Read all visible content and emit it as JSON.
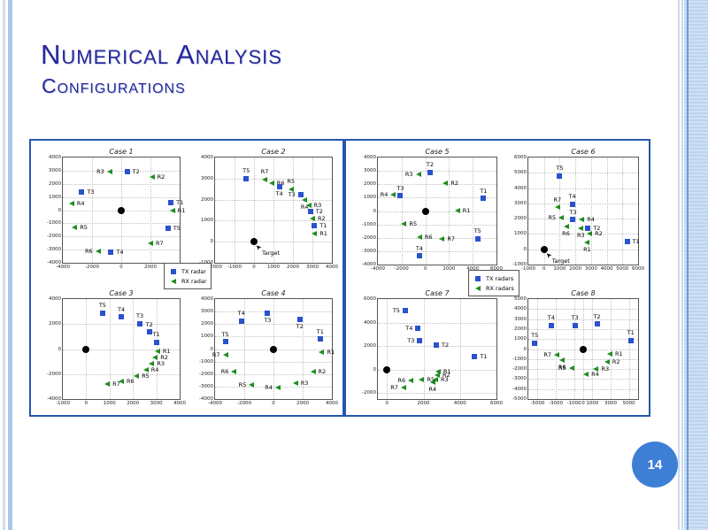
{
  "slide": {
    "title": "Numerical Analysis",
    "subtitle": "Configurations",
    "page_number": "14"
  },
  "colors": {
    "title": "#26269c",
    "tx_marker": "#2952cc",
    "rx_marker": "#1e8c1e",
    "target_marker": "#000000",
    "panel_border": "#2458b0",
    "page_circle": "#3e7fd6"
  },
  "legends": {
    "left": {
      "tx": "TX radar",
      "rx": "RX radar"
    },
    "right": {
      "tx": "TX radars",
      "rx": "RX radars"
    }
  },
  "chart_data": [
    {
      "title": "Case 1",
      "type": "scatter",
      "xlim": [
        -4000,
        4000
      ],
      "ylim": [
        -4000,
        4000
      ],
      "xticks": [
        -4000,
        -2000,
        0,
        2000,
        4000
      ],
      "yticks": [
        -4000,
        -3000,
        -2000,
        -1000,
        0,
        1000,
        2000,
        3000,
        4000
      ],
      "points": [
        {
          "l": "T2",
          "t": "tx",
          "x": 400,
          "y": 2950,
          "p": "r"
        },
        {
          "l": "R3",
          "t": "rx",
          "x": -800,
          "y": 2950,
          "p": "l"
        },
        {
          "l": "R2",
          "t": "rx",
          "x": 2100,
          "y": 2500,
          "p": "r"
        },
        {
          "l": "T3",
          "t": "tx",
          "x": -2700,
          "y": 1350,
          "p": "r"
        },
        {
          "l": "R4",
          "t": "rx",
          "x": -3400,
          "y": 500,
          "p": "r"
        },
        {
          "l": "T1",
          "t": "tx",
          "x": 3400,
          "y": 600,
          "p": "r"
        },
        {
          "l": "R1",
          "t": "rx",
          "x": 3500,
          "y": 0,
          "p": "r"
        },
        {
          "l": "R5",
          "t": "rx",
          "x": -3200,
          "y": -1300,
          "p": "r"
        },
        {
          "l": "T5",
          "t": "tx",
          "x": 3200,
          "y": -1400,
          "p": "r"
        },
        {
          "l": "R7",
          "t": "rx",
          "x": 2000,
          "y": -2550,
          "p": "r"
        },
        {
          "l": "R6",
          "t": "rx",
          "x": -1600,
          "y": -3100,
          "p": "l"
        },
        {
          "l": "T4",
          "t": "tx",
          "x": -700,
          "y": -3200,
          "p": "r"
        }
      ],
      "target": {
        "x": 0,
        "y": 0
      }
    },
    {
      "title": "Case 2",
      "type": "scatter",
      "xlim": [
        -2000,
        4000
      ],
      "ylim": [
        -1000,
        4000
      ],
      "xticks": [
        -2000,
        -1000,
        0,
        1000,
        2000,
        3000,
        4000
      ],
      "yticks": [
        -1000,
        0,
        1000,
        2000,
        3000,
        4000
      ],
      "points": [
        {
          "l": "T5",
          "t": "tx",
          "x": -400,
          "y": 3000,
          "p": "a"
        },
        {
          "l": "R7",
          "t": "rx",
          "x": 550,
          "y": 2950,
          "p": "a"
        },
        {
          "l": "R6",
          "t": "rx",
          "x": 900,
          "y": 2800,
          "p": "r"
        },
        {
          "l": "T4",
          "t": "tx",
          "x": 1300,
          "y": 2600,
          "p": "b"
        },
        {
          "l": "R5",
          "t": "rx",
          "x": 1900,
          "y": 2500,
          "p": "a"
        },
        {
          "l": "T3",
          "t": "tx",
          "x": 2400,
          "y": 2250,
          "p": "l"
        },
        {
          "l": "R4",
          "t": "rx",
          "x": 2600,
          "y": 2000,
          "p": "b"
        },
        {
          "l": "R3",
          "t": "rx",
          "x": 2800,
          "y": 1750,
          "p": "r"
        },
        {
          "l": "T2",
          "t": "tx",
          "x": 2900,
          "y": 1450,
          "p": "r"
        },
        {
          "l": "R2",
          "t": "rx",
          "x": 3000,
          "y": 1100,
          "p": "r"
        },
        {
          "l": "T1",
          "t": "tx",
          "x": 3100,
          "y": 750,
          "p": "r"
        },
        {
          "l": "R1",
          "t": "rx",
          "x": 3100,
          "y": 400,
          "p": "r"
        }
      ],
      "target": {
        "x": 0,
        "y": 0,
        "label": "Target"
      }
    },
    {
      "title": "Case 3",
      "type": "scatter",
      "xlim": [
        -1000,
        4000
      ],
      "ylim": [
        -4000,
        4000
      ],
      "xticks": [
        -1000,
        0,
        1000,
        2000,
        3000,
        4000
      ],
      "yticks": [
        -4000,
        -2000,
        0,
        2000,
        4000
      ],
      "points": [
        {
          "l": "T5",
          "t": "tx",
          "x": 700,
          "y": 2900,
          "p": "a"
        },
        {
          "l": "T4",
          "t": "tx",
          "x": 1500,
          "y": 2550,
          "p": "a"
        },
        {
          "l": "T3",
          "t": "tx",
          "x": 2300,
          "y": 2050,
          "p": "a"
        },
        {
          "l": "T2",
          "t": "tx",
          "x": 2700,
          "y": 1350,
          "p": "a"
        },
        {
          "l": "T1",
          "t": "tx",
          "x": 3000,
          "y": 550,
          "p": "a"
        },
        {
          "l": "R1",
          "t": "rx",
          "x": 3050,
          "y": -200,
          "p": "r"
        },
        {
          "l": "R2",
          "t": "rx",
          "x": 2950,
          "y": -700,
          "p": "r"
        },
        {
          "l": "R3",
          "t": "rx",
          "x": 2800,
          "y": -1200,
          "p": "r"
        },
        {
          "l": "R4",
          "t": "rx",
          "x": 2550,
          "y": -1650,
          "p": "r"
        },
        {
          "l": "R5",
          "t": "rx",
          "x": 2150,
          "y": -2150,
          "p": "r"
        },
        {
          "l": "R6",
          "t": "rx",
          "x": 1500,
          "y": -2600,
          "p": "r"
        },
        {
          "l": "R7",
          "t": "rx",
          "x": 900,
          "y": -2800,
          "p": "r"
        }
      ],
      "target": {
        "x": 0,
        "y": 0
      }
    },
    {
      "title": "Case 4",
      "type": "scatter",
      "xlim": [
        -4000,
        4000
      ],
      "ylim": [
        -4000,
        4000
      ],
      "xticks": [
        -4000,
        -2000,
        0,
        2000,
        4000
      ],
      "yticks": [
        -4000,
        -3000,
        -2000,
        -1000,
        0,
        1000,
        2000,
        3000,
        4000
      ],
      "points": [
        {
          "l": "T3",
          "t": "tx",
          "x": -400,
          "y": 2850,
          "p": "b"
        },
        {
          "l": "T2",
          "t": "tx",
          "x": 1800,
          "y": 2400,
          "p": "b"
        },
        {
          "l": "T4",
          "t": "tx",
          "x": -2200,
          "y": 2250,
          "p": "a"
        },
        {
          "l": "T1",
          "t": "tx",
          "x": 3200,
          "y": 800,
          "p": "a"
        },
        {
          "l": "T5",
          "t": "tx",
          "x": -3300,
          "y": 600,
          "p": "a"
        },
        {
          "l": "R1",
          "t": "rx",
          "x": 3300,
          "y": -250,
          "p": "r"
        },
        {
          "l": "R7",
          "t": "rx",
          "x": -3300,
          "y": -450,
          "p": "l"
        },
        {
          "l": "R2",
          "t": "rx",
          "x": 2700,
          "y": -1800,
          "p": "r"
        },
        {
          "l": "R6",
          "t": "rx",
          "x": -2700,
          "y": -1800,
          "p": "l"
        },
        {
          "l": "R3",
          "t": "rx",
          "x": 1500,
          "y": -2750,
          "p": "r"
        },
        {
          "l": "R5",
          "t": "rx",
          "x": -1500,
          "y": -2850,
          "p": "l"
        },
        {
          "l": "R4",
          "t": "rx",
          "x": 300,
          "y": -3050,
          "p": "l"
        }
      ],
      "target": {
        "x": 0,
        "y": 0
      }
    },
    {
      "title": "Case 5",
      "type": "scatter",
      "xlim": [
        -4000,
        6000
      ],
      "ylim": [
        -4000,
        4000
      ],
      "xticks": [
        -4000,
        -2000,
        0,
        2000,
        4000,
        6000
      ],
      "yticks": [
        -4000,
        -3000,
        -2000,
        -1000,
        0,
        1000,
        2000,
        3000,
        4000
      ],
      "points": [
        {
          "l": "T2",
          "t": "tx",
          "x": 400,
          "y": 2900,
          "p": "a"
        },
        {
          "l": "R3",
          "t": "rx",
          "x": -600,
          "y": 2750,
          "p": "l"
        },
        {
          "l": "R2",
          "t": "rx",
          "x": 1700,
          "y": 2100,
          "p": "r"
        },
        {
          "l": "R4",
          "t": "rx",
          "x": -2700,
          "y": 1250,
          "p": "l"
        },
        {
          "l": "T3",
          "t": "tx",
          "x": -2100,
          "y": 1150,
          "p": "a"
        },
        {
          "l": "T1",
          "t": "tx",
          "x": 4900,
          "y": 950,
          "p": "a"
        },
        {
          "l": "R1",
          "t": "rx",
          "x": 2700,
          "y": 50,
          "p": "r"
        },
        {
          "l": "R5",
          "t": "rx",
          "x": -1800,
          "y": -950,
          "p": "r"
        },
        {
          "l": "R6",
          "t": "rx",
          "x": -500,
          "y": -1950,
          "p": "r"
        },
        {
          "l": "R7",
          "t": "rx",
          "x": 1400,
          "y": -2050,
          "p": "r"
        },
        {
          "l": "T5",
          "t": "tx",
          "x": 4400,
          "y": -2050,
          "p": "a"
        },
        {
          "l": "T4",
          "t": "tx",
          "x": -500,
          "y": -3350,
          "p": "a"
        }
      ],
      "target": {
        "x": 0,
        "y": 0
      }
    },
    {
      "title": "Case 6",
      "type": "scatter",
      "xlim": [
        -1000,
        6000
      ],
      "ylim": [
        -1000,
        6000
      ],
      "xticks": [
        -1000,
        0,
        1000,
        2000,
        3000,
        4000,
        5000,
        6000
      ],
      "yticks": [
        -1000,
        0,
        1000,
        2000,
        3000,
        4000,
        5000,
        6000
      ],
      "points": [
        {
          "l": "T5",
          "t": "tx",
          "x": 1000,
          "y": 4800,
          "p": "a"
        },
        {
          "l": "T4",
          "t": "tx",
          "x": 1800,
          "y": 2950,
          "p": "a"
        },
        {
          "l": "R7",
          "t": "rx",
          "x": 850,
          "y": 2750,
          "p": "a"
        },
        {
          "l": "R5",
          "t": "rx",
          "x": 1100,
          "y": 2050,
          "p": "l"
        },
        {
          "l": "T3",
          "t": "tx",
          "x": 1850,
          "y": 1950,
          "p": "a"
        },
        {
          "l": "R4",
          "t": "rx",
          "x": 2400,
          "y": 1950,
          "p": "r"
        },
        {
          "l": "R6",
          "t": "rx",
          "x": 1400,
          "y": 1500,
          "p": "b"
        },
        {
          "l": "R3",
          "t": "rx",
          "x": 2350,
          "y": 1400,
          "p": "b"
        },
        {
          "l": "T2",
          "t": "tx",
          "x": 2800,
          "y": 1350,
          "p": "r"
        },
        {
          "l": "R2",
          "t": "rx",
          "x": 2900,
          "y": 1000,
          "p": "r"
        },
        {
          "l": "R1",
          "t": "rx",
          "x": 2750,
          "y": 450,
          "p": "b"
        },
        {
          "l": "T1",
          "t": "tx",
          "x": 5300,
          "y": 500,
          "p": "r"
        }
      ],
      "target": {
        "x": 0,
        "y": 0,
        "label": "Target"
      }
    },
    {
      "title": "Case 7",
      "type": "scatter",
      "xlim": [
        -500,
        6000
      ],
      "ylim": [
        -2500,
        6000
      ],
      "xticks": [
        0,
        2000,
        4000,
        6000
      ],
      "yticks": [
        -2000,
        0,
        2000,
        4000,
        6000
      ],
      "points": [
        {
          "l": "T5",
          "t": "tx",
          "x": 1000,
          "y": 5000,
          "p": "l"
        },
        {
          "l": "T4",
          "t": "tx",
          "x": 1700,
          "y": 3500,
          "p": "l"
        },
        {
          "l": "T3",
          "t": "tx",
          "x": 1800,
          "y": 2500,
          "p": "l"
        },
        {
          "l": "T2",
          "t": "tx",
          "x": 2700,
          "y": 2100,
          "p": "r"
        },
        {
          "l": "T1",
          "t": "tx",
          "x": 4800,
          "y": 1100,
          "p": "r"
        },
        {
          "l": "R1",
          "t": "rx",
          "x": 2800,
          "y": -150,
          "p": "r"
        },
        {
          "l": "R2",
          "t": "rx",
          "x": 2750,
          "y": -500,
          "p": "r"
        },
        {
          "l": "R3",
          "t": "rx",
          "x": 2650,
          "y": -850,
          "p": "r"
        },
        {
          "l": "R4",
          "t": "rx",
          "x": 2500,
          "y": -1100,
          "p": "b"
        },
        {
          "l": "R5",
          "t": "rx",
          "x": 1900,
          "y": -850,
          "p": "r"
        },
        {
          "l": "R6",
          "t": "rx",
          "x": 1300,
          "y": -900,
          "p": "l"
        },
        {
          "l": "R7",
          "t": "rx",
          "x": 900,
          "y": -1550,
          "p": "l"
        }
      ],
      "target": {
        "x": 0,
        "y": 0
      }
    },
    {
      "title": "Case 8",
      "type": "scatter",
      "xlim": [
        -6000,
        6000
      ],
      "ylim": [
        -5000,
        5000
      ],
      "xticks": [
        -5000,
        -3000,
        -1000,
        0,
        1000,
        3000,
        5000
      ],
      "yticks": [
        -5000,
        -4000,
        -3000,
        -2000,
        -1000,
        0,
        1000,
        2000,
        3000,
        4000,
        5000
      ],
      "points": [
        {
          "l": "T2",
          "t": "tx",
          "x": 1500,
          "y": 2500,
          "p": "a"
        },
        {
          "l": "T4",
          "t": "tx",
          "x": -3500,
          "y": 2350,
          "p": "a"
        },
        {
          "l": "T3",
          "t": "tx",
          "x": -900,
          "y": 2350,
          "p": "a"
        },
        {
          "l": "T5",
          "t": "tx",
          "x": -5300,
          "y": 600,
          "p": "a"
        },
        {
          "l": "T1",
          "t": "tx",
          "x": 5200,
          "y": 850,
          "p": "a"
        },
        {
          "l": "R1",
          "t": "rx",
          "x": 2900,
          "y": -500,
          "p": "r"
        },
        {
          "l": "R7",
          "t": "rx",
          "x": -2900,
          "y": -600,
          "p": "l"
        },
        {
          "l": "R2",
          "t": "rx",
          "x": 2600,
          "y": -1250,
          "p": "r"
        },
        {
          "l": "R6",
          "t": "rx",
          "x": -2300,
          "y": -1150,
          "p": "b"
        },
        {
          "l": "R3",
          "t": "rx",
          "x": 1400,
          "y": -1950,
          "p": "r"
        },
        {
          "l": "R5",
          "t": "rx",
          "x": -1300,
          "y": -1900,
          "p": "l"
        },
        {
          "l": "R4",
          "t": "rx",
          "x": 300,
          "y": -2550,
          "p": "r"
        }
      ],
      "target": {
        "x": 0,
        "y": 0
      }
    }
  ]
}
